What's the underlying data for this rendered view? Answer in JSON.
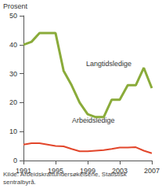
{
  "chart_data": {
    "type": "line",
    "y_label": "Prosent",
    "source": "Kilde: Arbeidskraftundersøkelsene, Statistisk sentralbyrå.",
    "x": [
      1991,
      1992,
      1993,
      1994,
      1995,
      1996,
      1997,
      1998,
      1999,
      2000,
      2001,
      2002,
      2003,
      2004,
      2005,
      2006,
      2007
    ],
    "series": [
      {
        "name": "Langtidsledige",
        "color": "#8aab3a",
        "values": [
          40,
          41,
          44,
          44,
          44,
          31,
          26,
          20,
          16,
          15,
          15,
          21,
          21,
          26,
          26,
          32,
          25
        ]
      },
      {
        "name": "Arbeidsledige",
        "color": "#e2462b",
        "values": [
          5.5,
          6,
          6,
          5.5,
          5,
          4.9,
          4,
          3.2,
          3.2,
          3.4,
          3.6,
          4,
          4.5,
          4.5,
          4.6,
          3.4,
          2.5
        ]
      }
    ],
    "xlim": [
      1991,
      2007
    ],
    "xticks": [
      1991,
      1995,
      1999,
      2003,
      2007
    ],
    "ylim": [
      0,
      50
    ],
    "yticks": [
      0,
      10,
      20,
      30,
      40,
      50
    ],
    "grid": false
  }
}
